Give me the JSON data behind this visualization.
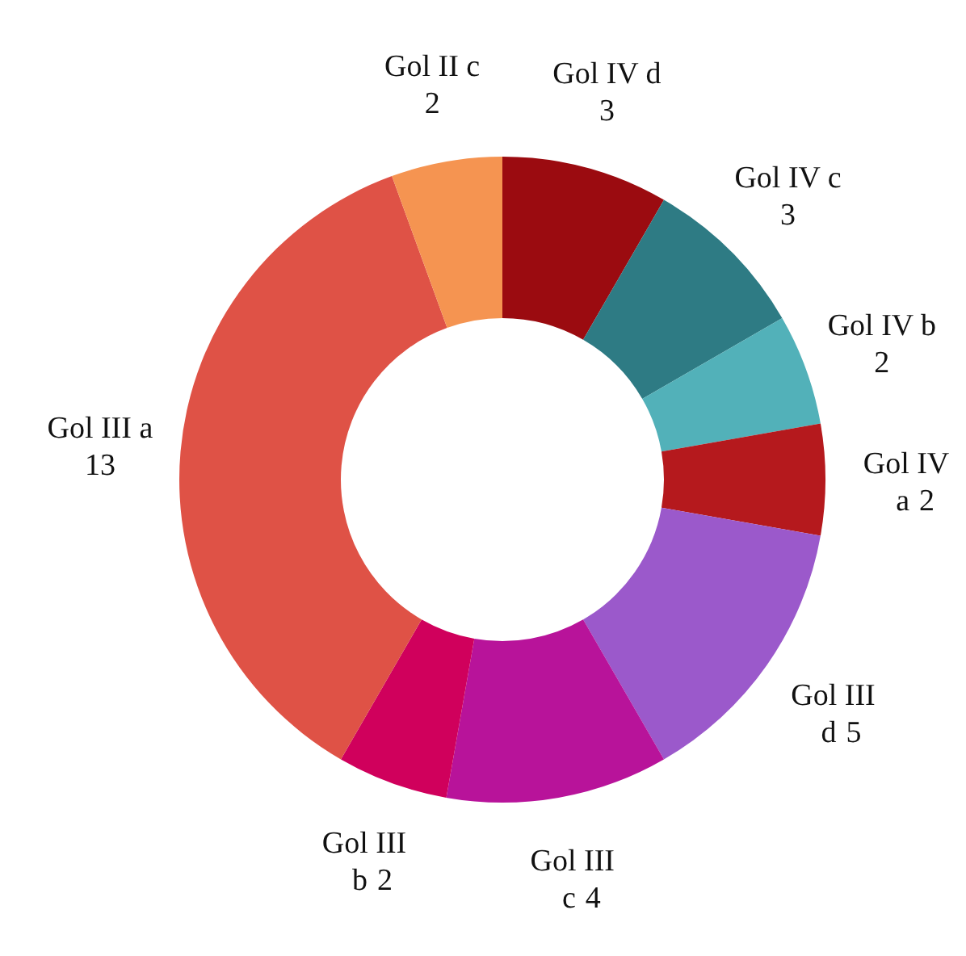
{
  "chart_data": {
    "type": "donut",
    "categories": [
      "Gol IV d",
      "Gol IV c",
      "Gol IV b",
      "Gol IV a",
      "Gol III d",
      "Gol III c",
      "Gol III b",
      "Gol III a",
      "Gol II c"
    ],
    "values": [
      3,
      3,
      2,
      2,
      5,
      4,
      2,
      13,
      2
    ],
    "colors": [
      "#9b0b10",
      "#2e7b84",
      "#52b1b9",
      "#b5191d",
      "#9b59cb",
      "#b8139a",
      "#d0005c",
      "#df5246",
      "#f59451"
    ],
    "data_labels": true
  }
}
